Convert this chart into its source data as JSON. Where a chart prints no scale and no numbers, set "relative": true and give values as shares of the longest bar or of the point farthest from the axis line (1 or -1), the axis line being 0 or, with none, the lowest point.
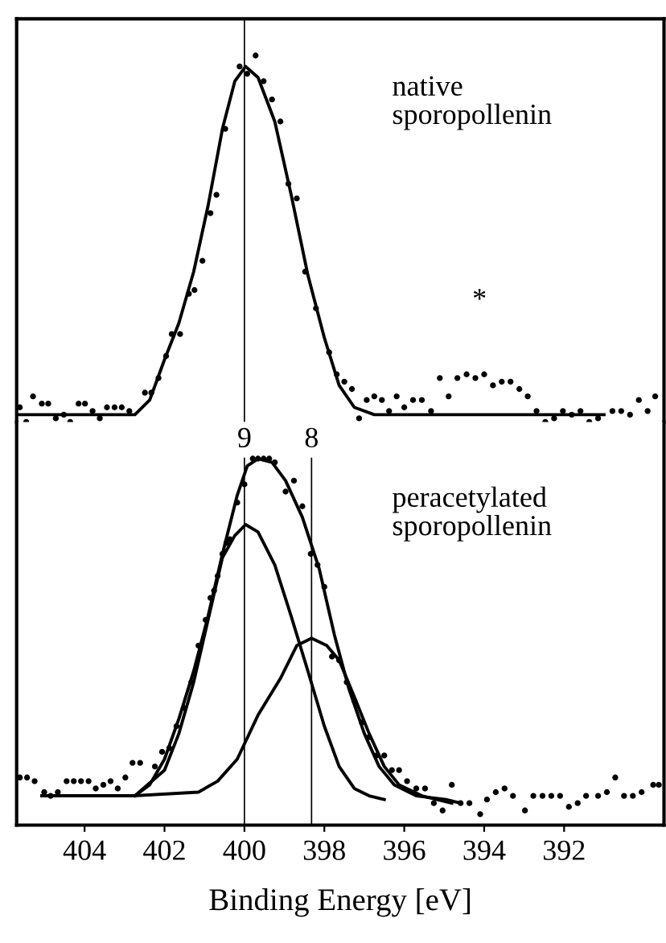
{
  "chart_data": [
    {
      "type": "scatter",
      "relative": true,
      "xlim": [
        405.7,
        389.5
      ],
      "tick_labels": false,
      "grid": false,
      "annotations": [
        "native\nsporopollenin",
        "*"
      ],
      "ref_lines": [
        {
          "axis": "x",
          "value": 400.0,
          "label": null,
          "color": "#000000"
        }
      ],
      "series": [
        {
          "color": "#000000",
          "marker": "circle",
          "x": [
            405.62,
            405.46,
            405.29,
            405.07,
            404.91,
            404.72,
            404.52,
            404.36,
            404.15,
            403.99,
            403.8,
            403.62,
            403.44,
            403.25,
            403.07,
            402.88,
            402.49,
            402.33,
            402.15,
            401.96,
            401.82,
            401.61,
            401.39,
            401.25,
            401.05,
            400.85,
            400.7,
            400.48,
            400.12,
            399.93,
            399.72,
            399.52,
            399.31,
            399.1,
            398.9,
            398.69,
            398.48,
            398.21,
            397.88,
            397.69,
            397.5,
            397.31,
            397.13,
            396.94,
            396.75,
            396.56,
            396.38,
            396.19,
            396.0,
            395.78,
            395.56,
            395.33,
            395.11,
            394.89,
            394.67,
            394.44,
            394.22,
            394.0,
            393.78,
            393.56,
            393.34,
            393.12,
            392.91,
            392.69,
            392.47,
            392.25,
            392.03,
            391.81,
            391.59,
            391.37,
            391.15,
            390.79,
            390.57,
            390.35,
            390.13,
            389.91,
            389.72
          ],
          "values": [
            0.04,
            0.0,
            0.07,
            0.05,
            0.05,
            0.01,
            0.02,
            0.0,
            0.05,
            0.05,
            0.03,
            0.01,
            0.04,
            0.04,
            0.04,
            0.03,
            0.08,
            0.08,
            0.12,
            0.18,
            0.24,
            0.24,
            0.35,
            0.36,
            0.44,
            0.57,
            0.62,
            0.8,
            0.97,
            0.95,
            1.0,
            0.93,
            0.88,
            0.82,
            0.65,
            0.61,
            0.41,
            0.31,
            0.19,
            0.13,
            0.11,
            0.09,
            0.01,
            0.06,
            0.07,
            0.06,
            0.03,
            0.07,
            0.04,
            0.06,
            0.06,
            0.03,
            0.12,
            0.07,
            0.12,
            0.13,
            0.12,
            0.13,
            0.1,
            0.11,
            0.11,
            0.09,
            0.07,
            0.03,
            0.0,
            0.01,
            0.03,
            0.02,
            0.03,
            0.0,
            0.01,
            0.03,
            0.03,
            0.02,
            0.06,
            0.03,
            0.07
          ]
        },
        {
          "type": "line",
          "color": "#000000",
          "marker": "none",
          "x": [
            405.68,
            402.74,
            402.37,
            402.0,
            401.64,
            401.27,
            400.91,
            400.55,
            400.24,
            399.97,
            399.66,
            399.24,
            398.83,
            398.41,
            398.0,
            397.63,
            397.25,
            396.75,
            391.0
          ],
          "values": [
            0.02,
            0.02,
            0.06,
            0.17,
            0.27,
            0.41,
            0.59,
            0.8,
            0.93,
            0.97,
            0.94,
            0.82,
            0.62,
            0.4,
            0.23,
            0.1,
            0.04,
            0.02,
            0.02
          ]
        }
      ]
    },
    {
      "type": "scatter",
      "relative": true,
      "xlim": [
        405.7,
        389.5
      ],
      "xticks": [
        404,
        402,
        400,
        398,
        396,
        394,
        392
      ],
      "tick_labels": "x",
      "grid": false,
      "xlabel": "Binding Energy [eV]",
      "annotations": [
        "peracetylated\nsporopollenin",
        "9",
        "8"
      ],
      "ref_lines": [
        {
          "axis": "x",
          "value": 400.0,
          "color": "#000000"
        },
        {
          "axis": "x",
          "value": 398.32,
          "color": "#000000"
        }
      ],
      "series": [
        {
          "color": "#000000",
          "marker": "circle",
          "x": [
            405.62,
            405.44,
            405.25,
            405.01,
            404.85,
            404.67,
            404.45,
            404.27,
            404.09,
            403.9,
            403.72,
            403.53,
            403.35,
            403.17,
            402.98,
            402.8,
            402.61,
            402.24,
            402.06,
            401.88,
            401.7,
            401.52,
            401.33,
            401.15,
            400.97,
            400.85,
            400.76,
            400.67,
            400.55,
            400.45,
            400.36,
            400.18,
            400.0,
            399.79,
            399.66,
            399.52,
            399.38,
            399.24,
            398.97,
            398.76,
            398.55,
            398.34,
            398.17,
            398.0,
            397.81,
            397.63,
            397.44,
            397.25,
            397.06,
            396.88,
            396.69,
            396.5,
            396.31,
            396.13,
            395.93,
            395.7,
            395.48,
            395.26,
            395.04,
            394.81,
            394.59,
            394.37,
            394.1,
            393.93,
            393.71,
            393.49,
            393.28,
            392.98,
            392.77,
            392.54,
            392.32,
            392.1,
            391.88,
            391.66,
            391.45,
            391.15,
            390.93,
            390.72,
            390.5,
            390.28,
            390.06,
            389.77,
            389.63
          ],
          "values": [
            0.13,
            0.13,
            0.12,
            0.09,
            0.08,
            0.09,
            0.12,
            0.12,
            0.12,
            0.12,
            0.1,
            0.11,
            0.12,
            0.1,
            0.13,
            0.17,
            0.17,
            0.16,
            0.2,
            0.21,
            0.27,
            0.32,
            0.39,
            0.49,
            0.56,
            0.62,
            0.64,
            0.68,
            0.74,
            0.77,
            0.78,
            0.88,
            0.93,
            1.0,
            1.0,
            1.0,
            1.0,
            0.99,
            0.91,
            0.94,
            0.87,
            0.74,
            0.71,
            0.65,
            0.46,
            0.45,
            0.39,
            0.34,
            0.28,
            0.24,
            0.19,
            0.19,
            0.15,
            0.15,
            0.12,
            0.1,
            0.1,
            0.06,
            0.04,
            0.11,
            0.06,
            0.06,
            0.03,
            0.07,
            0.09,
            0.1,
            0.08,
            0.04,
            0.08,
            0.08,
            0.08,
            0.08,
            0.05,
            0.06,
            0.08,
            0.08,
            0.09,
            0.13,
            0.08,
            0.08,
            0.09,
            0.11,
            0.11
          ]
        },
        {
          "type": "line",
          "color": "#000000",
          "marker": "none",
          "x": [
            405.07,
            402.74,
            402.37,
            402.0,
            401.64,
            401.27,
            400.91,
            400.55,
            400.18,
            399.93,
            399.66,
            399.31,
            398.97,
            398.55,
            398.13,
            397.75,
            397.38,
            397.0,
            396.63,
            396.25,
            395.7,
            394.96,
            394.59
          ],
          "values": [
            0.08,
            0.08,
            0.11,
            0.18,
            0.29,
            0.42,
            0.57,
            0.74,
            0.9,
            0.98,
            1.0,
            0.99,
            0.94,
            0.84,
            0.7,
            0.52,
            0.37,
            0.25,
            0.16,
            0.11,
            0.08,
            0.07,
            0.06
          ]
        },
        {
          "type": "line",
          "color": "#000000",
          "marker": "none",
          "x": [
            402.74,
            402.0,
            401.64,
            401.27,
            400.91,
            400.55,
            400.24,
            399.97,
            399.66,
            399.24,
            398.83,
            398.41,
            398.0,
            397.63,
            397.25,
            396.88,
            396.5
          ],
          "values": [
            0.08,
            0.15,
            0.25,
            0.39,
            0.56,
            0.73,
            0.79,
            0.82,
            0.8,
            0.71,
            0.57,
            0.42,
            0.27,
            0.16,
            0.1,
            0.08,
            0.07
          ]
        },
        {
          "type": "line",
          "color": "#000000",
          "marker": "none",
          "x": [
            402.74,
            401.15,
            400.67,
            400.18,
            399.66,
            399.1,
            398.69,
            398.32,
            397.94,
            397.63,
            397.25,
            396.88,
            396.5,
            396.13,
            395.56,
            394.81
          ],
          "values": [
            0.08,
            0.09,
            0.12,
            0.18,
            0.3,
            0.4,
            0.49,
            0.51,
            0.49,
            0.45,
            0.35,
            0.25,
            0.16,
            0.11,
            0.08,
            0.06
          ]
        }
      ]
    }
  ]
}
